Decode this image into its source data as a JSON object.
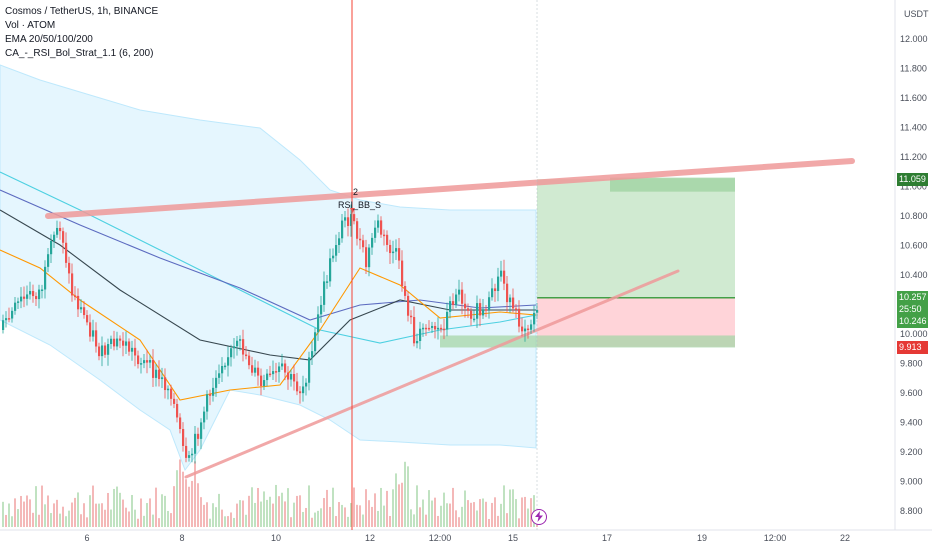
{
  "legend": {
    "symbol": "Cosmos / TetherUS, 1h, BINANCE",
    "volume": "Vol · ATOM",
    "ema": "EMA 20/50/100/200",
    "strategy": "CA_-_RSI_Bol_Strat_1.1 (6, 200)"
  },
  "price_axis": {
    "unit": "USDT",
    "ticks": [
      "12.000",
      "11.800",
      "11.600",
      "11.400",
      "11.200",
      "11.000",
      "10.800",
      "10.600",
      "10.400",
      "10.200",
      "10.000",
      "9.800",
      "9.600",
      "9.400",
      "9.200",
      "9.000",
      "8.800"
    ]
  },
  "time_axis": {
    "ticks": [
      "6",
      "8",
      "10",
      "12",
      "12:00",
      "15",
      "17",
      "19",
      "12:00",
      "22"
    ]
  },
  "price_tags": {
    "target": "11.059",
    "current": "10.257",
    "countdown": "25:50",
    "entry": "10.246",
    "stop": "9.913"
  },
  "annotations": {
    "signal_count": "2",
    "signal_label": "RSI_BB_S"
  },
  "colors": {
    "up": "#26a69a",
    "down": "#ef5350",
    "target_zone": "#c8e6c9",
    "stop_zone": "#ffcdd2",
    "trendline": "#ef9a9a",
    "bollinger_fill": "#e1f5fe",
    "cursor_line": "#f44336"
  },
  "icons": {
    "alert": "lightning-bolt-icon"
  }
}
